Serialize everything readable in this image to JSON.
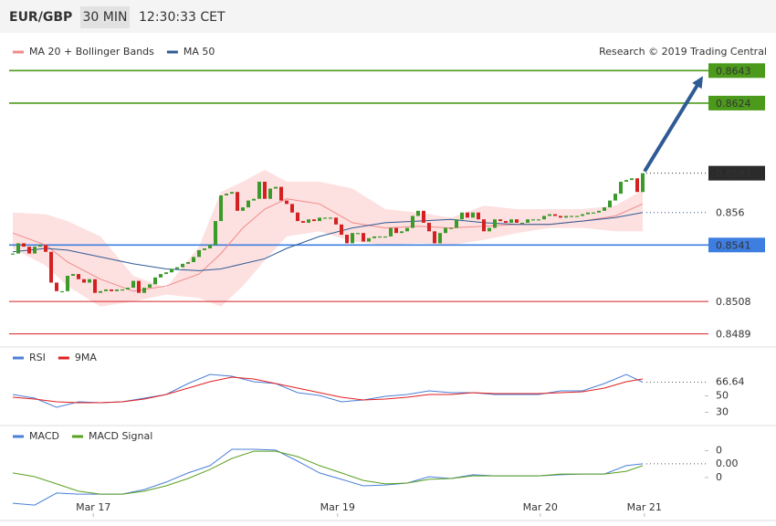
{
  "header": {
    "symbol": "EUR/GBP",
    "interval": "30 MIN",
    "time": "12:30:33 CET"
  },
  "credit": "Research © 2019 Trading Central",
  "chart_data": [
    {
      "type": "candlestick",
      "up_color": "#3a9a2a",
      "down_color": "#d42020",
      "xlim": [
        -0.67,
        126
      ],
      "ylim": [
        0.8484,
        0.8664
      ],
      "values": [
        0.8536,
        0.8542,
        0.854,
        0.8536,
        0.854,
        0.8541,
        0.8537,
        0.8519,
        0.8514,
        0.8514,
        0.8523,
        0.8524,
        0.8521,
        0.8519,
        0.8521,
        0.8513,
        0.8514,
        0.8515,
        0.8514,
        0.8515,
        0.8515,
        0.8516,
        0.852,
        0.8513,
        0.8516,
        0.8518,
        0.8522,
        0.8524,
        0.8525,
        0.8527,
        0.8528,
        0.853,
        0.8531,
        0.8534,
        0.8538,
        0.8539,
        0.8541,
        0.8555,
        0.857,
        0.8571,
        0.8572,
        0.8561,
        0.8563,
        0.8567,
        0.8568,
        0.8578,
        0.8568,
        0.8574,
        0.8575,
        0.8567,
        0.8565,
        0.856,
        0.8555,
        0.8554,
        0.8556,
        0.8555,
        0.8557,
        0.8557,
        0.8557,
        0.8553,
        0.8547,
        0.8542,
        0.8548,
        0.8548,
        0.8543,
        0.8545,
        0.8546,
        0.8546,
        0.8546,
        0.8551,
        0.8548,
        0.8549,
        0.8551,
        0.8558,
        0.8561,
        0.8554,
        0.8549,
        0.8542,
        0.8548,
        0.8551,
        0.8551,
        0.8556,
        0.856,
        0.8557,
        0.856,
        0.8556,
        0.8549,
        0.8551,
        0.8556,
        0.8555,
        0.8554,
        0.8556,
        0.8554,
        0.8554,
        0.8556,
        0.8556,
        0.8556,
        0.8558,
        0.8559,
        0.8558,
        0.8557,
        0.8558,
        0.8558,
        0.8558,
        0.8559,
        0.856,
        0.856,
        0.8561,
        0.8563,
        0.8567,
        0.8571,
        0.8578,
        0.8579,
        0.858,
        0.8572,
        0.8583
      ],
      "overlays": {
        "x": [
          0,
          6,
          10,
          16,
          22,
          28,
          34,
          38,
          42,
          46,
          50,
          56,
          62,
          68,
          74,
          80,
          86,
          92,
          98,
          104,
          110,
          115
        ],
        "series": [
          {
            "name": "MA 20 + Bollinger Bands",
            "color": "#f08a8a",
            "band_color": "#fde0e0",
            "values": [
              0.8548,
              0.8541,
              0.8531,
              0.8521,
              0.8514,
              0.8517,
              0.8524,
              0.8536,
              0.8551,
              0.8562,
              0.8568,
              0.8565,
              0.8554,
              0.8551,
              0.8552,
              0.8551,
              0.8552,
              0.8553,
              0.8553,
              0.8555,
              0.8558,
              0.8565
            ],
            "upper": [
              0.856,
              0.8559,
              0.8555,
              0.8546,
              0.8523,
              0.8516,
              0.854,
              0.8572,
              0.8578,
              0.8585,
              0.8578,
              0.8578,
              0.8574,
              0.8562,
              0.856,
              0.8557,
              0.8564,
              0.8562,
              0.8562,
              0.8562,
              0.8564,
              0.8573
            ],
            "lower": [
              0.8539,
              0.8529,
              0.8517,
              0.8505,
              0.8508,
              0.8512,
              0.851,
              0.8505,
              0.8517,
              0.8532,
              0.8546,
              0.8549,
              0.8543,
              0.8541,
              0.8542,
              0.8541,
              0.8544,
              0.8548,
              0.8551,
              0.8551,
              0.8549,
              0.8549
            ]
          },
          {
            "name": "MA 50",
            "color": "#2f5b95",
            "values": [
              0.8537,
              0.8539,
              0.8538,
              0.8534,
              0.853,
              0.8527,
              0.8526,
              0.8527,
              0.853,
              0.8533,
              0.8539,
              0.8546,
              0.8551,
              0.8554,
              0.8555,
              0.8556,
              0.8554,
              0.8553,
              0.8553,
              0.8555,
              0.8557,
              0.856
            ]
          }
        ]
      },
      "levels": [
        {
          "value": 0.8643,
          "color": "#4c9a1c",
          "line": "solid",
          "filled": true
        },
        {
          "value": 0.8624,
          "color": "#4c9a1c",
          "line": "solid",
          "filled": true
        },
        {
          "value": 0.8583,
          "color": "#2b2b2b",
          "line": "dotted",
          "filled": true
        },
        {
          "value": 0.856,
          "color": "#2f4f7f",
          "line": "dotted",
          "filled": false
        },
        {
          "value": 0.8541,
          "color": "#3d7ee0",
          "line": "solid",
          "filled": true
        },
        {
          "value": 0.8508,
          "color": "#d42020",
          "line": "solid",
          "filled": false
        },
        {
          "value": 0.8489,
          "color": "#d42020",
          "line": "solid",
          "filled": false
        }
      ]
    },
    {
      "type": "line",
      "xlim": [
        -0.67,
        126
      ],
      "ylim": [
        15,
        105
      ],
      "yticks": [
        50,
        30
      ],
      "current": 66.64,
      "x": [
        0,
        4,
        8,
        12,
        16,
        20,
        24,
        28,
        32,
        36,
        40,
        44,
        48,
        52,
        56,
        60,
        64,
        68,
        72,
        76,
        80,
        84,
        88,
        92,
        96,
        100,
        104,
        108,
        112,
        115
      ],
      "series": [
        {
          "name": "RSI",
          "color": "#4a7fd8",
          "values": [
            51.7,
            47.2,
            36.1,
            42.8,
            41.7,
            42.8,
            47.2,
            51.7,
            65,
            76.1,
            73.9,
            67.2,
            65,
            53.9,
            50.6,
            42.8,
            45,
            49.4,
            51.7,
            56.1,
            53.9,
            53.9,
            51.7,
            51.7,
            51.7,
            56.1,
            56.1,
            65,
            76.1,
            66.64
          ]
        },
        {
          "name": "9MA",
          "color": "#e02020",
          "values": [
            48.3,
            46.1,
            42.8,
            41.7,
            41.7,
            42.8,
            46.1,
            51.7,
            59.4,
            67.2,
            72.8,
            70.6,
            65,
            59.4,
            53.9,
            48.3,
            45,
            46.1,
            48.3,
            51.7,
            51.7,
            53.9,
            52.8,
            52.8,
            52.8,
            53.9,
            55,
            59.4,
            67.2,
            70.6
          ]
        }
      ]
    },
    {
      "type": "line",
      "xlim": [
        -0.67,
        126
      ],
      "ylim": [
        -0.0019,
        0.0013
      ],
      "yticks": [
        {
          "value": 0.0005,
          "label": "0"
        },
        {
          "value": -0.0005,
          "label": "0"
        }
      ],
      "current": {
        "value": 1e-05,
        "label": "0.00"
      },
      "xticks": [
        {
          "value": 14.7,
          "label": "Mar 17"
        },
        {
          "value": 59.3,
          "label": "Mar 19"
        },
        {
          "value": 96.3,
          "label": "Mar 20"
        },
        {
          "value": 115.3,
          "label": "Mar 21"
        }
      ],
      "x": [
        0,
        4,
        8,
        12,
        16,
        20,
        24,
        28,
        32,
        36,
        40,
        44,
        48,
        52,
        56,
        60,
        64,
        68,
        72,
        76,
        80,
        84,
        88,
        92,
        96,
        100,
        104,
        108,
        112,
        115
      ],
      "series": [
        {
          "name": "MACD",
          "color": "#4a7fd8",
          "values": [
            -0.00146,
            -0.00153,
            -0.00108,
            -0.00112,
            -0.00112,
            -0.00112,
            -0.00095,
            -0.00067,
            -0.00033,
            -6e-05,
            0.00055,
            0.00055,
            0.00052,
            0.00011,
            -0.00033,
            -0.00057,
            -0.00081,
            -0.00078,
            -0.00071,
            -0.00047,
            -0.00054,
            -0.0004,
            -0.00044,
            -0.00044,
            -0.00044,
            -0.0004,
            -0.00037,
            -0.00037,
            -6e-05,
            1e-05
          ]
        },
        {
          "name": "MACD Signal",
          "color": "#5aa020",
          "values": [
            -0.00033,
            -0.00047,
            -0.00074,
            -0.00101,
            -0.00112,
            -0.00112,
            -0.00101,
            -0.00081,
            -0.00054,
            -0.0002,
            0.00021,
            0.00048,
            0.00048,
            0.00028,
            -6e-05,
            -0.00033,
            -0.00061,
            -0.00074,
            -0.00071,
            -0.00057,
            -0.00054,
            -0.00044,
            -0.00044,
            -0.00044,
            -0.00044,
            -0.00037,
            -0.00037,
            -0.00037,
            -0.00027,
            -6e-05
          ]
        }
      ]
    }
  ]
}
